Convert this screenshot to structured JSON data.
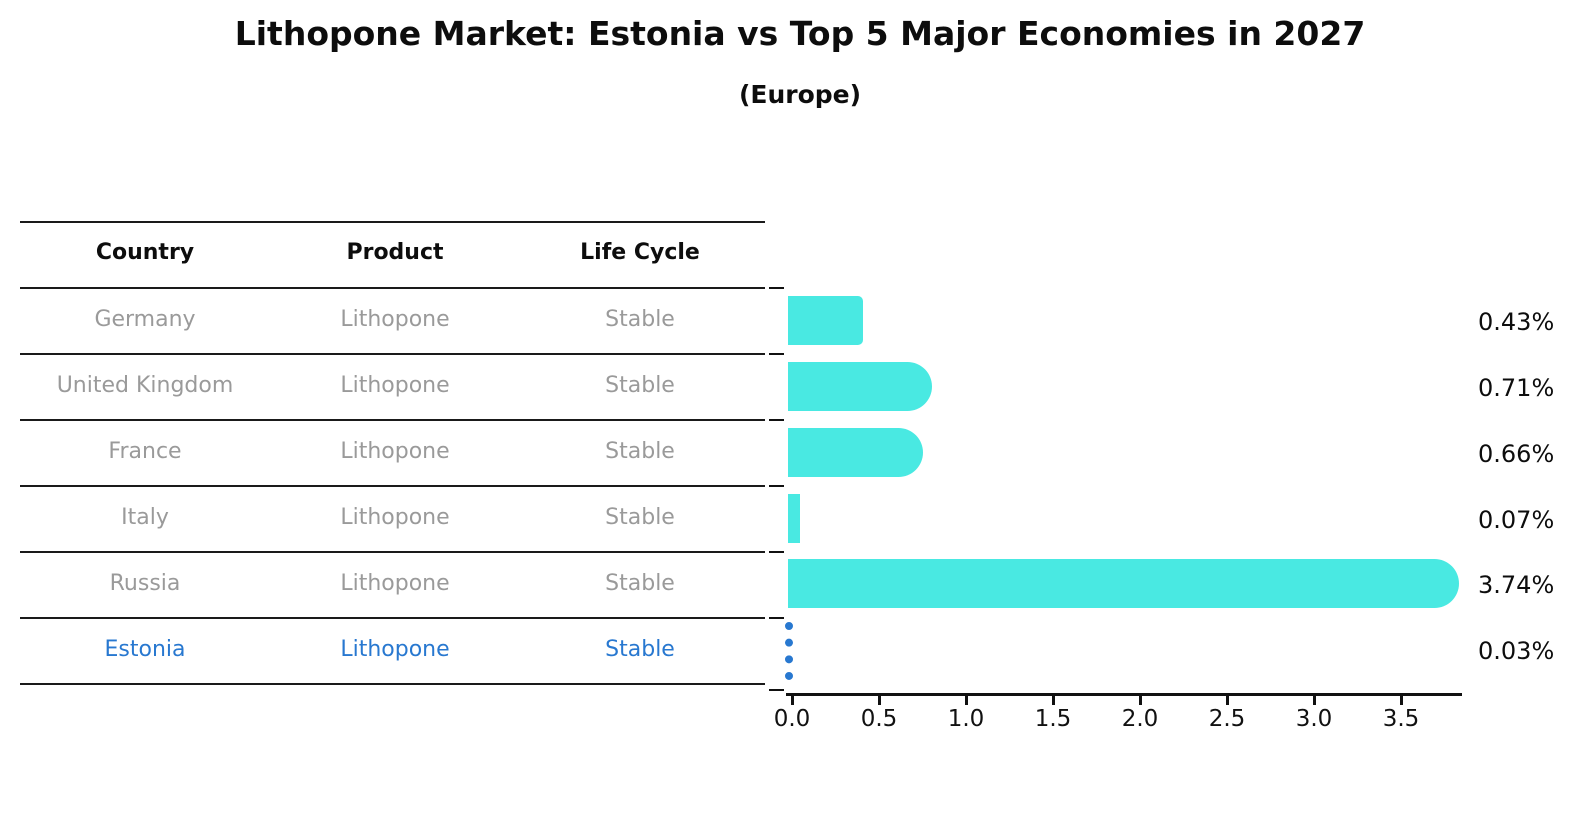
{
  "title": "Lithopone Market: Estonia vs Top 5 Major Economies in 2027",
  "subtitle": "(Europe)",
  "table": {
    "headers": [
      "Country",
      "Product",
      "Life Cycle"
    ],
    "rows": [
      {
        "country": "Germany",
        "product": "Lithopone",
        "life_cycle": "Stable",
        "highlighted": false
      },
      {
        "country": "United Kingdom",
        "product": "Lithopone",
        "life_cycle": "Stable",
        "highlighted": false
      },
      {
        "country": "France",
        "product": "Lithopone",
        "life_cycle": "Stable",
        "highlighted": false
      },
      {
        "country": "Italy",
        "product": "Lithopone",
        "life_cycle": "Stable",
        "highlighted": false
      },
      {
        "country": "Russia",
        "product": "Lithopone",
        "life_cycle": "Stable",
        "highlighted": false
      },
      {
        "country": "Estonia",
        "product": "Lithopone",
        "life_cycle": "Stable",
        "highlighted": true
      }
    ]
  },
  "chart_data": {
    "type": "bar",
    "orientation": "horizontal",
    "categories": [
      "Germany",
      "United Kingdom",
      "France",
      "Italy",
      "Russia",
      "Estonia"
    ],
    "values": [
      0.43,
      0.71,
      0.66,
      0.07,
      3.74,
      0.03
    ],
    "value_labels": [
      "0.43%",
      "0.71%",
      "0.66%",
      "0.07%",
      "3.74%",
      "0.03%"
    ],
    "x_ticks": [
      "0.0",
      "0.5",
      "1.0",
      "1.5",
      "2.0",
      "2.5",
      "3.0",
      "3.5"
    ],
    "xlim": [
      0,
      3.9
    ],
    "grid": false,
    "legend": "none",
    "highlight_index": 5,
    "highlight_style": "dotted-line-marker"
  },
  "colors": {
    "bar": "#49E9E2",
    "highlight": "#2878D0",
    "text_muted": "#9a9a9a",
    "text_dark": "#0d0d0d"
  }
}
